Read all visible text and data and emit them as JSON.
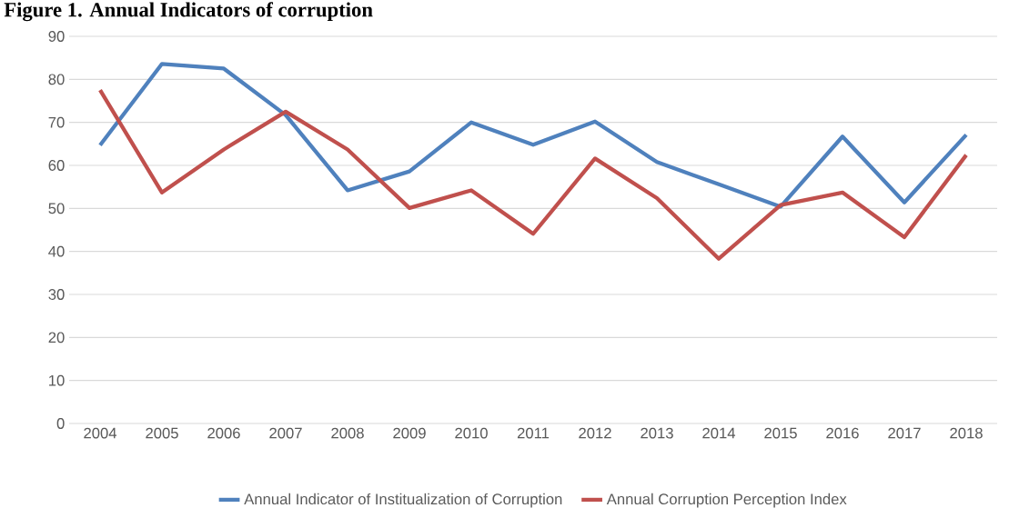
{
  "chart_data": {
    "type": "line",
    "title": "Figure 1.      Annual Indicators of corruption",
    "categories": [
      "2004",
      "2005",
      "2006",
      "2007",
      "2008",
      "2009",
      "2010",
      "2011",
      "2012",
      "2013",
      "2014",
      "2015",
      "2016",
      "2017",
      "2018"
    ],
    "series": [
      {
        "name": "Annual Indicator of  Institualization of Corruption",
        "color": "#4f81bd",
        "values": [
          64.7,
          83.6,
          82.5,
          71.7,
          54.2,
          58.6,
          70.0,
          64.8,
          70.2,
          60.8,
          55.6,
          50.4,
          66.7,
          51.4,
          67.1
        ]
      },
      {
        "name": "Annual Corruption Perception Index",
        "color": "#c0504d",
        "values": [
          77.5,
          53.7,
          63.7,
          72.5,
          63.7,
          50.1,
          54.2,
          44.1,
          61.6,
          52.4,
          38.3,
          50.8,
          53.7,
          43.3,
          62.4
        ]
      }
    ],
    "ylim": [
      0,
      90
    ],
    "yticks": [
      0,
      10,
      20,
      30,
      40,
      50,
      60,
      70,
      80,
      90
    ],
    "grid": "y",
    "legend": "bottom"
  }
}
